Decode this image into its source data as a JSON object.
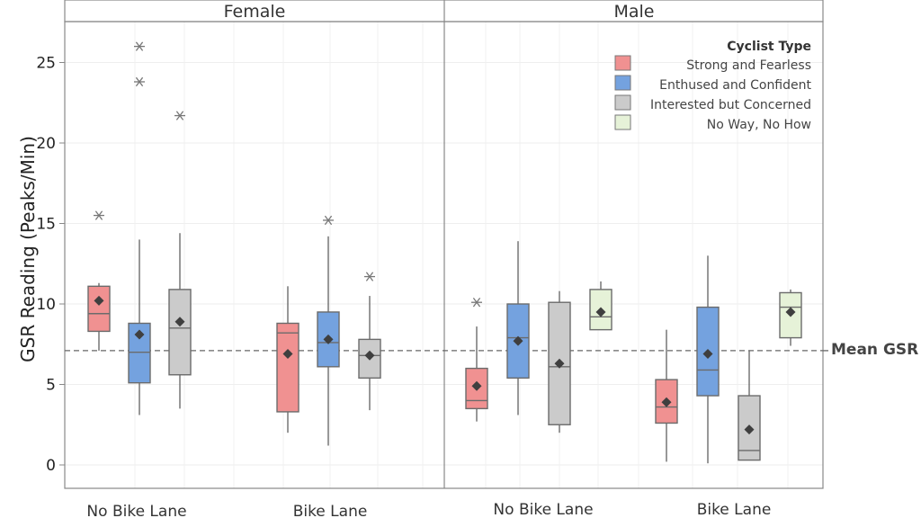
{
  "chart_data": {
    "type": "boxplot",
    "title": "",
    "xlabel": "",
    "ylabel": "GSR Reading (Peaks/Min)",
    "ylim": [
      -1.5,
      27.5
    ],
    "yticks": [
      0,
      5,
      10,
      15,
      20,
      25
    ],
    "grid": true,
    "panels": [
      "Female",
      "Male"
    ],
    "categories": [
      "No Bike Lane",
      "Bike Lane"
    ],
    "reference_line": {
      "label": "Mean GSR",
      "value": 7.1,
      "style": "dashed"
    },
    "legend": {
      "title": "Cyclist Type",
      "placement": "top-right",
      "entries": [
        {
          "name": "Strong and Fearless",
          "color": "#f09191"
        },
        {
          "name": "Enthused and Confident",
          "color": "#74a2df"
        },
        {
          "name": "Interested but Concerned",
          "color": "#cbcbcb"
        },
        {
          "name": "No Way, No How",
          "color": "#e6f2d8"
        }
      ]
    },
    "series": [
      {
        "panel": "Female",
        "category": "No Bike Lane",
        "type": "Strong and Fearless",
        "whisker_low": 7.1,
        "q1": 8.3,
        "median": 9.4,
        "q3": 11.1,
        "whisker_high": 11.3,
        "mean": 10.2,
        "outliers": [
          15.5
        ]
      },
      {
        "panel": "Female",
        "category": "No Bike Lane",
        "type": "Enthused and Confident",
        "whisker_low": 3.1,
        "q1": 5.1,
        "median": 7.0,
        "q3": 8.8,
        "whisker_high": 14.0,
        "mean": 8.1,
        "outliers": [
          23.8,
          26.0
        ]
      },
      {
        "panel": "Female",
        "category": "No Bike Lane",
        "type": "Interested but Concerned",
        "whisker_low": 3.5,
        "q1": 5.6,
        "median": 8.5,
        "q3": 10.9,
        "whisker_high": 14.4,
        "mean": 8.9,
        "outliers": [
          21.7
        ]
      },
      {
        "panel": "Female",
        "category": "Bike Lane",
        "type": "Strong and Fearless",
        "whisker_low": 2.0,
        "q1": 3.3,
        "median": 8.2,
        "q3": 8.8,
        "whisker_high": 11.1,
        "mean": 6.9,
        "outliers": []
      },
      {
        "panel": "Female",
        "category": "Bike Lane",
        "type": "Enthused and Confident",
        "whisker_low": 1.2,
        "q1": 6.1,
        "median": 7.6,
        "q3": 9.5,
        "whisker_high": 14.2,
        "mean": 7.8,
        "outliers": [
          15.2
        ]
      },
      {
        "panel": "Female",
        "category": "Bike Lane",
        "type": "Interested but Concerned",
        "whisker_low": 3.4,
        "q1": 5.4,
        "median": 6.8,
        "q3": 7.8,
        "whisker_high": 10.5,
        "mean": 6.8,
        "outliers": [
          11.7
        ]
      },
      {
        "panel": "Male",
        "category": "No Bike Lane",
        "type": "Strong and Fearless",
        "whisker_low": 2.7,
        "q1": 3.5,
        "median": 4.0,
        "q3": 6.0,
        "whisker_high": 8.6,
        "mean": 4.9,
        "outliers": [
          10.1
        ]
      },
      {
        "panel": "Male",
        "category": "No Bike Lane",
        "type": "Enthused and Confident",
        "whisker_low": 3.1,
        "q1": 5.4,
        "median": 7.9,
        "q3": 10.0,
        "whisker_high": 13.9,
        "mean": 7.7,
        "outliers": []
      },
      {
        "panel": "Male",
        "category": "No Bike Lane",
        "type": "Interested but Concerned",
        "whisker_low": 2.0,
        "q1": 2.5,
        "median": 6.1,
        "q3": 10.1,
        "whisker_high": 10.8,
        "mean": 6.3,
        "outliers": []
      },
      {
        "panel": "Male",
        "category": "No Bike Lane",
        "type": "No Way, No How",
        "whisker_low": 8.4,
        "q1": 8.4,
        "median": 9.2,
        "q3": 10.9,
        "whisker_high": 11.4,
        "mean": 9.5,
        "outliers": []
      },
      {
        "panel": "Male",
        "category": "Bike Lane",
        "type": "Strong and Fearless",
        "whisker_low": 0.2,
        "q1": 2.6,
        "median": 3.6,
        "q3": 5.3,
        "whisker_high": 8.4,
        "mean": 3.9,
        "outliers": []
      },
      {
        "panel": "Male",
        "category": "Bike Lane",
        "type": "Enthused and Confident",
        "whisker_low": 0.1,
        "q1": 4.3,
        "median": 5.9,
        "q3": 9.8,
        "whisker_high": 13.0,
        "mean": 6.9,
        "outliers": []
      },
      {
        "panel": "Male",
        "category": "Bike Lane",
        "type": "Interested but Concerned",
        "whisker_low": 0.3,
        "q1": 0.3,
        "median": 0.9,
        "q3": 4.3,
        "whisker_high": 7.1,
        "mean": 2.2,
        "outliers": []
      },
      {
        "panel": "Male",
        "category": "Bike Lane",
        "type": "No Way, No How",
        "whisker_low": 7.4,
        "q1": 7.9,
        "median": 9.8,
        "q3": 10.7,
        "whisker_high": 10.9,
        "mean": 9.5,
        "outliers": []
      }
    ]
  }
}
